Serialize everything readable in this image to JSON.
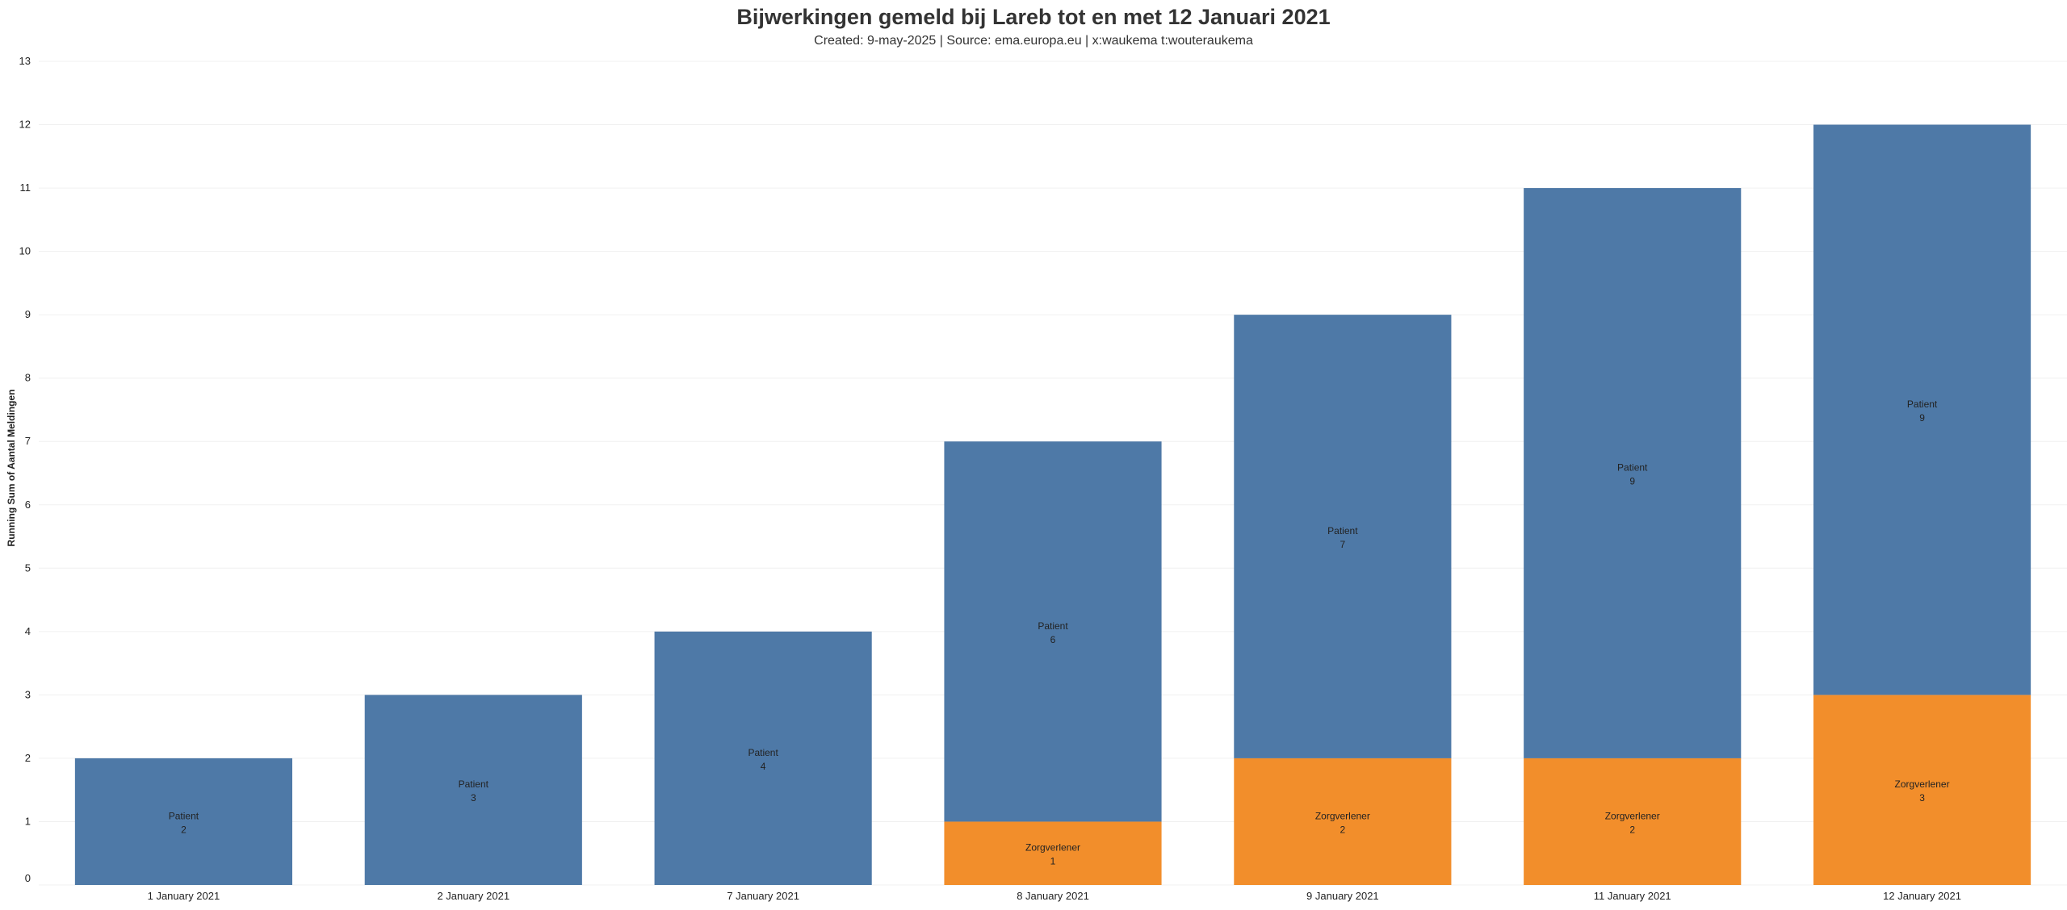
{
  "header": {
    "title": "Bijwerkingen gemeld bij Lareb tot en met 12 Januari 2021",
    "subtitle": "Created: 9-may-2025 | Source: ema.europa.eu | x:waukema t:wouteraukema"
  },
  "chart_data": {
    "type": "bar",
    "stacked": true,
    "title": "Bijwerkingen gemeld bij Lareb tot en met 12 Januari 2021",
    "xlabel": "",
    "ylabel": "Running Sum of Aantal Meldingen",
    "ylim": [
      0,
      13
    ],
    "yticks": [
      0,
      1,
      2,
      3,
      4,
      5,
      6,
      7,
      8,
      9,
      10,
      11,
      12,
      13
    ],
    "grid": true,
    "categories": [
      "1 January 2021",
      "2 January 2021",
      "7 January 2021",
      "8 January 2021",
      "9 January 2021",
      "11 January 2021",
      "12 January 2021"
    ],
    "series": [
      {
        "name": "Zorgverlener",
        "color": "#f28e2b",
        "values": [
          0,
          0,
          0,
          1,
          2,
          2,
          3
        ]
      },
      {
        "name": "Patient",
        "color": "#4e79a7",
        "values": [
          2,
          3,
          4,
          6,
          7,
          9,
          9
        ]
      }
    ]
  }
}
